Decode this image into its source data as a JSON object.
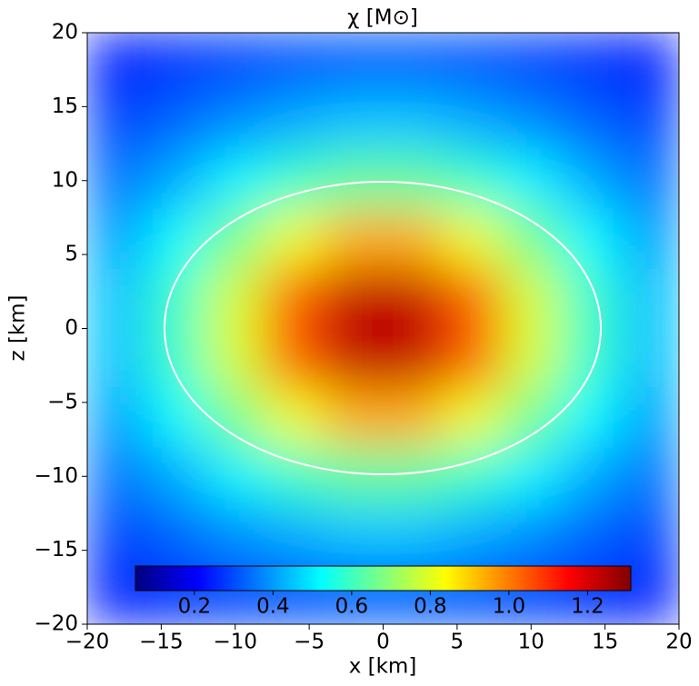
{
  "chart_data": {
    "type": "heatmap",
    "title": "χ [M⊙]",
    "xlabel": "x [km]",
    "ylabel": "z [km]",
    "x": [
      -18,
      -14,
      -10,
      -6,
      -2,
      2,
      6,
      10,
      14,
      18
    ],
    "z": [
      18,
      14,
      10,
      6,
      2,
      -2,
      -6,
      -10,
      -14,
      -18
    ],
    "values": [
      [
        0.24,
        0.27,
        0.29,
        0.31,
        0.32,
        0.32,
        0.31,
        0.29,
        0.27,
        0.24
      ],
      [
        0.29,
        0.33,
        0.38,
        0.42,
        0.45,
        0.45,
        0.42,
        0.38,
        0.33,
        0.29
      ],
      [
        0.35,
        0.42,
        0.51,
        0.59,
        0.64,
        0.64,
        0.59,
        0.51,
        0.42,
        0.35
      ],
      [
        0.41,
        0.52,
        0.67,
        0.82,
        0.94,
        0.94,
        0.82,
        0.67,
        0.52,
        0.41
      ],
      [
        0.45,
        0.59,
        0.79,
        1.04,
        1.23,
        1.23,
        1.04,
        0.79,
        0.59,
        0.45
      ],
      [
        0.45,
        0.59,
        0.79,
        1.04,
        1.23,
        1.23,
        1.04,
        0.79,
        0.59,
        0.45
      ],
      [
        0.41,
        0.52,
        0.67,
        0.82,
        0.94,
        0.94,
        0.82,
        0.67,
        0.52,
        0.41
      ],
      [
        0.35,
        0.42,
        0.51,
        0.59,
        0.64,
        0.64,
        0.59,
        0.51,
        0.42,
        0.35
      ],
      [
        0.29,
        0.33,
        0.38,
        0.42,
        0.45,
        0.45,
        0.42,
        0.38,
        0.33,
        0.29
      ],
      [
        0.24,
        0.27,
        0.29,
        0.31,
        0.32,
        0.32,
        0.31,
        0.29,
        0.27,
        0.24
      ]
    ],
    "colormap": "jet",
    "clim": [
      0.05,
      1.31
    ],
    "colorbar_ticks": [
      0.2,
      0.4,
      0.6,
      0.8,
      {
        "value": 1,
        "label": "1.0"
      },
      1.2
    ],
    "xlim": [
      -20,
      20
    ],
    "ylim": [
      -20,
      20
    ],
    "xticks": [
      {
        "value": -20,
        "label": "−20"
      },
      {
        "value": -15,
        "label": "−15"
      },
      {
        "value": -10,
        "label": "−10"
      },
      {
        "value": -5,
        "label": "−5"
      },
      0,
      5,
      10,
      15,
      20
    ],
    "yticks": [
      {
        "value": -20,
        "label": "−20"
      },
      {
        "value": -15,
        "label": "−15"
      },
      {
        "value": -10,
        "label": "−10"
      },
      {
        "value": -5,
        "label": "−5"
      },
      0,
      5,
      10,
      15,
      20
    ]
  }
}
